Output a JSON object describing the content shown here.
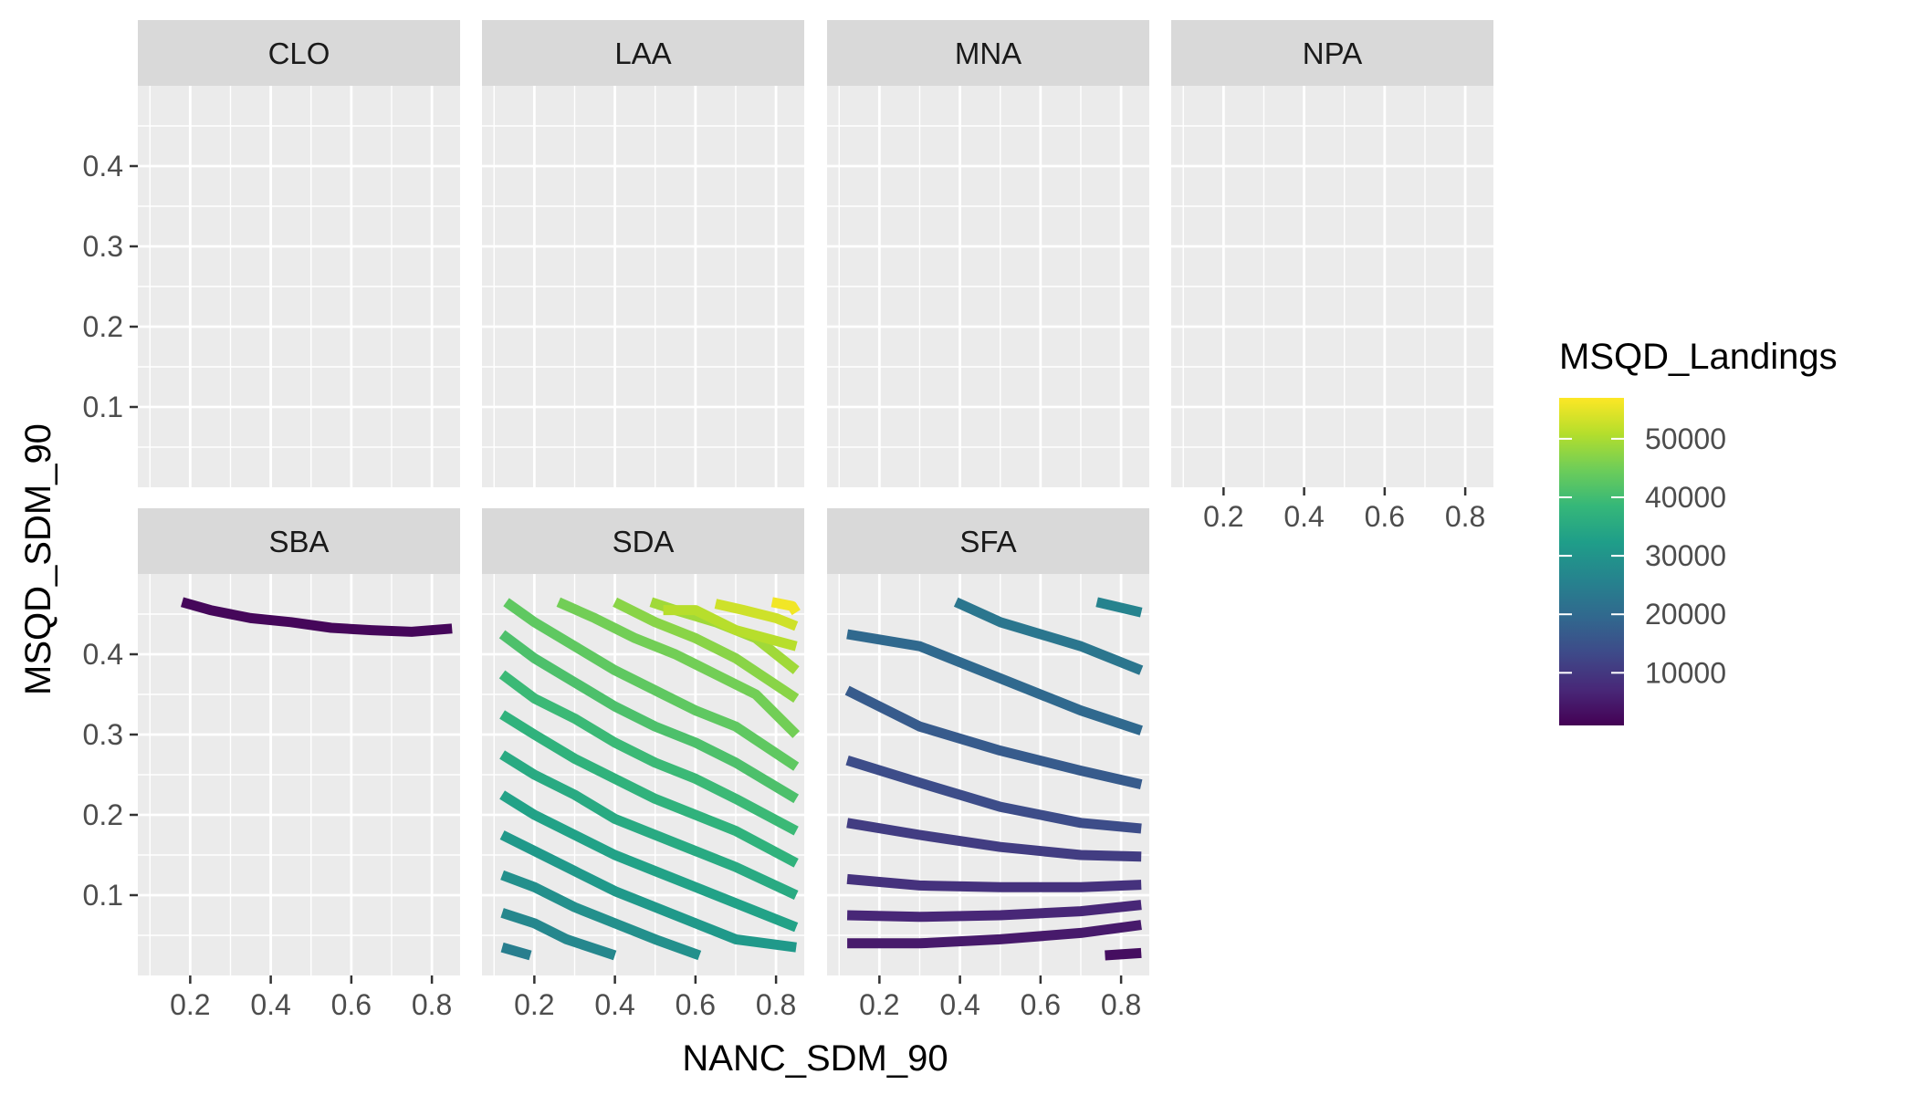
{
  "chart_data": {
    "type": "line",
    "subtype": "faceted contour lines",
    "xlabel": "NANC_SDM_90",
    "ylabel": "MSQD_SDM_90",
    "xlim": [
      0.07,
      0.87
    ],
    "ylim": [
      0.0,
      0.5
    ],
    "x_ticks": [
      0.2,
      0.4,
      0.6,
      0.8
    ],
    "x_tick_labels": [
      "0.2",
      "0.4",
      "0.6",
      "0.8"
    ],
    "y_ticks": [
      0.1,
      0.2,
      0.3,
      0.4
    ],
    "y_tick_labels": [
      "0.1",
      "0.2",
      "0.3",
      "0.4"
    ],
    "grid": true,
    "legend": {
      "title": "MSQD_Landings",
      "type": "colorbar",
      "position": "right",
      "range": [
        1000,
        57000
      ],
      "breaks": [
        50000,
        40000,
        30000,
        20000,
        10000
      ],
      "break_labels": [
        "50000",
        "40000",
        "30000",
        "20000",
        "10000"
      ],
      "palette": [
        "#440154",
        "#482878",
        "#3E4A89",
        "#31688E",
        "#26828E",
        "#1F9E89",
        "#35B779",
        "#6DCD59",
        "#B4DE2C",
        "#FDE725"
      ]
    },
    "facets": [
      {
        "label": "CLO",
        "lines": []
      },
      {
        "label": "LAA",
        "lines": []
      },
      {
        "label": "MNA",
        "lines": []
      },
      {
        "label": "NPA",
        "lines": []
      },
      {
        "label": "SBA",
        "lines": [
          {
            "level": 2000,
            "points": [
              [
                0.18,
                0.465
              ],
              [
                0.25,
                0.455
              ],
              [
                0.35,
                0.445
              ],
              [
                0.45,
                0.44
              ],
              [
                0.55,
                0.433
              ],
              [
                0.65,
                0.43
              ],
              [
                0.75,
                0.428
              ],
              [
                0.85,
                0.432
              ]
            ]
          }
        ]
      },
      {
        "label": "SDA",
        "lines": [
          {
            "level": 25000,
            "points": [
              [
                0.12,
                0.035
              ],
              [
                0.19,
                0.025
              ]
            ]
          },
          {
            "level": 27000,
            "points": [
              [
                0.12,
                0.078
              ],
              [
                0.2,
                0.065
              ],
              [
                0.28,
                0.045
              ],
              [
                0.4,
                0.025
              ]
            ]
          },
          {
            "level": 29000,
            "points": [
              [
                0.12,
                0.125
              ],
              [
                0.2,
                0.11
              ],
              [
                0.3,
                0.085
              ],
              [
                0.4,
                0.065
              ],
              [
                0.5,
                0.045
              ],
              [
                0.61,
                0.025
              ]
            ]
          },
          {
            "level": 31000,
            "points": [
              [
                0.12,
                0.175
              ],
              [
                0.2,
                0.155
              ],
              [
                0.3,
                0.13
              ],
              [
                0.4,
                0.105
              ],
              [
                0.5,
                0.085
              ],
              [
                0.6,
                0.065
              ],
              [
                0.7,
                0.045
              ],
              [
                0.85,
                0.035
              ]
            ]
          },
          {
            "level": 33000,
            "points": [
              [
                0.12,
                0.225
              ],
              [
                0.2,
                0.2
              ],
              [
                0.3,
                0.175
              ],
              [
                0.4,
                0.15
              ],
              [
                0.5,
                0.13
              ],
              [
                0.6,
                0.11
              ],
              [
                0.7,
                0.09
              ],
              [
                0.85,
                0.06
              ]
            ]
          },
          {
            "level": 35000,
            "points": [
              [
                0.12,
                0.275
              ],
              [
                0.2,
                0.25
              ],
              [
                0.3,
                0.225
              ],
              [
                0.4,
                0.195
              ],
              [
                0.5,
                0.175
              ],
              [
                0.6,
                0.155
              ],
              [
                0.7,
                0.135
              ],
              [
                0.85,
                0.1
              ]
            ]
          },
          {
            "level": 37000,
            "points": [
              [
                0.12,
                0.325
              ],
              [
                0.2,
                0.3
              ],
              [
                0.3,
                0.27
              ],
              [
                0.4,
                0.245
              ],
              [
                0.5,
                0.22
              ],
              [
                0.6,
                0.2
              ],
              [
                0.7,
                0.18
              ],
              [
                0.85,
                0.14
              ]
            ]
          },
          {
            "level": 39000,
            "points": [
              [
                0.12,
                0.375
              ],
              [
                0.2,
                0.345
              ],
              [
                0.3,
                0.32
              ],
              [
                0.4,
                0.29
              ],
              [
                0.5,
                0.265
              ],
              [
                0.6,
                0.245
              ],
              [
                0.7,
                0.22
              ],
              [
                0.85,
                0.18
              ]
            ]
          },
          {
            "level": 41000,
            "points": [
              [
                0.12,
                0.425
              ],
              [
                0.2,
                0.395
              ],
              [
                0.3,
                0.365
              ],
              [
                0.4,
                0.335
              ],
              [
                0.5,
                0.31
              ],
              [
                0.6,
                0.29
              ],
              [
                0.7,
                0.265
              ],
              [
                0.85,
                0.22
              ]
            ]
          },
          {
            "level": 43000,
            "points": [
              [
                0.13,
                0.465
              ],
              [
                0.2,
                0.44
              ],
              [
                0.3,
                0.41
              ],
              [
                0.4,
                0.38
              ],
              [
                0.5,
                0.355
              ],
              [
                0.6,
                0.33
              ],
              [
                0.7,
                0.31
              ],
              [
                0.85,
                0.26
              ]
            ]
          },
          {
            "level": 45000,
            "points": [
              [
                0.26,
                0.465
              ],
              [
                0.35,
                0.445
              ],
              [
                0.45,
                0.42
              ],
              [
                0.55,
                0.4
              ],
              [
                0.65,
                0.375
              ],
              [
                0.75,
                0.35
              ],
              [
                0.85,
                0.3
              ]
            ]
          },
          {
            "level": 47000,
            "points": [
              [
                0.4,
                0.465
              ],
              [
                0.5,
                0.44
              ],
              [
                0.6,
                0.42
              ],
              [
                0.7,
                0.395
              ],
              [
                0.85,
                0.345
              ]
            ]
          },
          {
            "level": 49000,
            "points": [
              [
                0.49,
                0.465
              ],
              [
                0.55,
                0.455
              ],
              [
                0.65,
                0.44
              ],
              [
                0.75,
                0.42
              ],
              [
                0.85,
                0.38
              ]
            ]
          },
          {
            "level": 51000,
            "points": [
              [
                0.52,
                0.455
              ],
              [
                0.6,
                0.455
              ],
              [
                0.7,
                0.43
              ],
              [
                0.85,
                0.41
              ]
            ]
          },
          {
            "level": 53000,
            "points": [
              [
                0.65,
                0.463
              ],
              [
                0.72,
                0.455
              ],
              [
                0.8,
                0.445
              ],
              [
                0.85,
                0.435
              ]
            ]
          },
          {
            "level": 56000,
            "points": [
              [
                0.79,
                0.465
              ],
              [
                0.84,
                0.46
              ],
              [
                0.85,
                0.452
              ]
            ]
          }
        ]
      },
      {
        "label": "SFA",
        "lines": [
          {
            "level": 3000,
            "points": [
              [
                0.76,
                0.025
              ],
              [
                0.85,
                0.028
              ]
            ]
          },
          {
            "level": 5000,
            "points": [
              [
                0.12,
                0.04
              ],
              [
                0.3,
                0.04
              ],
              [
                0.5,
                0.045
              ],
              [
                0.7,
                0.053
              ],
              [
                0.85,
                0.063
              ]
            ]
          },
          {
            "level": 7000,
            "points": [
              [
                0.12,
                0.075
              ],
              [
                0.3,
                0.073
              ],
              [
                0.5,
                0.075
              ],
              [
                0.7,
                0.08
              ],
              [
                0.85,
                0.088
              ]
            ]
          },
          {
            "level": 9000,
            "points": [
              [
                0.12,
                0.12
              ],
              [
                0.3,
                0.112
              ],
              [
                0.5,
                0.11
              ],
              [
                0.7,
                0.11
              ],
              [
                0.85,
                0.113
              ]
            ]
          },
          {
            "level": 11000,
            "points": [
              [
                0.12,
                0.19
              ],
              [
                0.3,
                0.175
              ],
              [
                0.5,
                0.16
              ],
              [
                0.7,
                0.15
              ],
              [
                0.85,
                0.148
              ]
            ]
          },
          {
            "level": 14000,
            "points": [
              [
                0.12,
                0.268
              ],
              [
                0.3,
                0.24
              ],
              [
                0.5,
                0.21
              ],
              [
                0.7,
                0.19
              ],
              [
                0.85,
                0.183
              ]
            ]
          },
          {
            "level": 17000,
            "points": [
              [
                0.12,
                0.355
              ],
              [
                0.3,
                0.31
              ],
              [
                0.5,
                0.28
              ],
              [
                0.7,
                0.255
              ],
              [
                0.85,
                0.238
              ]
            ]
          },
          {
            "level": 20000,
            "points": [
              [
                0.12,
                0.425
              ],
              [
                0.3,
                0.41
              ],
              [
                0.5,
                0.37
              ],
              [
                0.7,
                0.33
              ],
              [
                0.85,
                0.305
              ]
            ]
          },
          {
            "level": 23000,
            "points": [
              [
                0.39,
                0.465
              ],
              [
                0.5,
                0.44
              ],
              [
                0.7,
                0.41
              ],
              [
                0.85,
                0.38
              ]
            ]
          },
          {
            "level": 26000,
            "points": [
              [
                0.74,
                0.465
              ],
              [
                0.85,
                0.452
              ]
            ]
          }
        ]
      }
    ]
  }
}
